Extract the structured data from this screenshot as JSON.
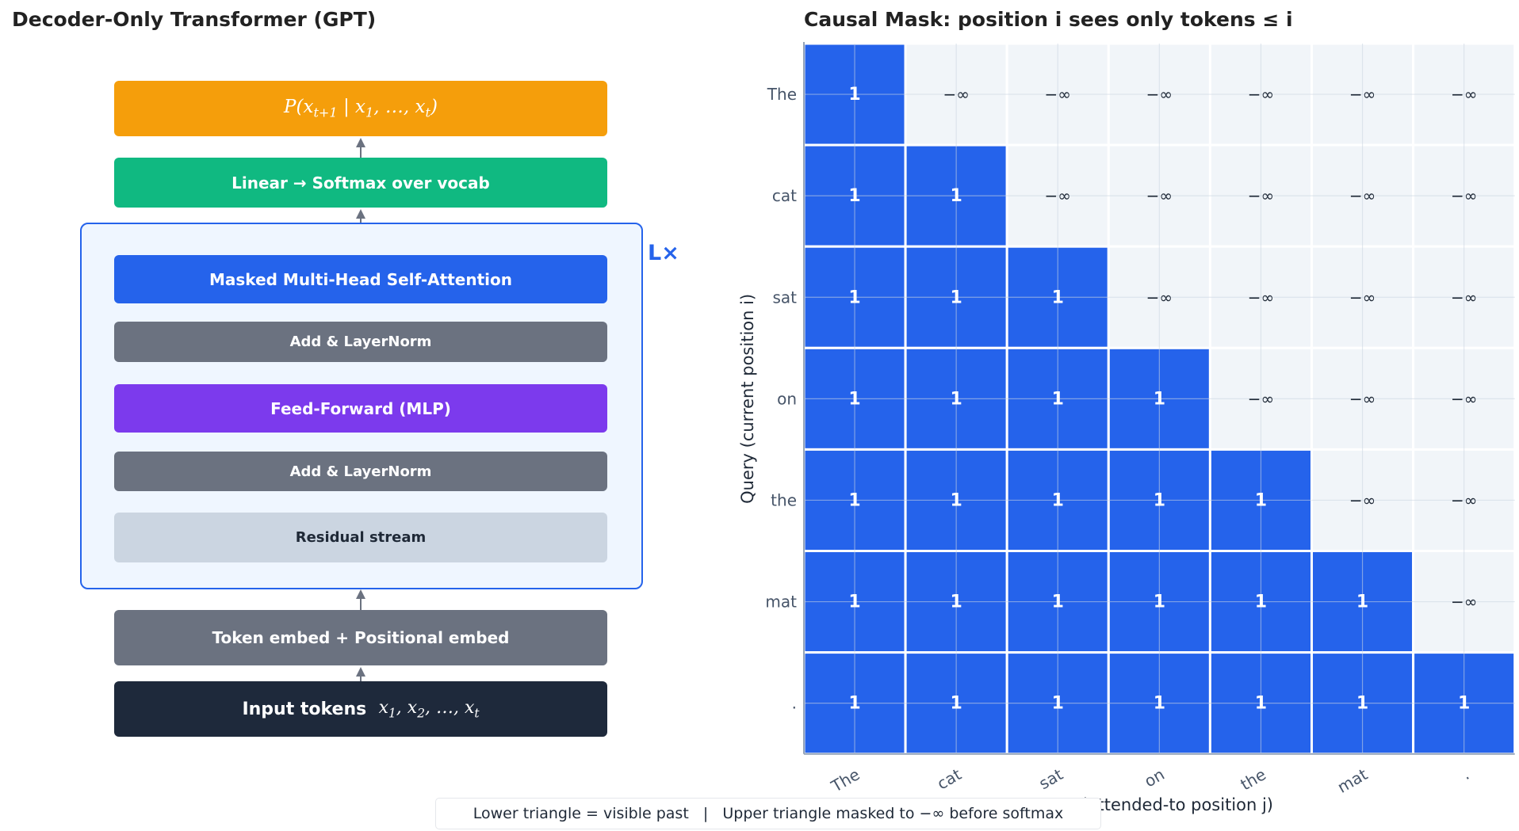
{
  "diagram": {
    "title": "Decoder-Only Transformer (GPT)",
    "output_box": {
      "parts": [
        "P(x",
        "t+1",
        " | x",
        "1",
        ", …, x",
        "t",
        ")"
      ],
      "color": "#f59e0b"
    },
    "head_box": {
      "label": "Linear  →  Softmax over vocab",
      "color": "#10b981"
    },
    "repeat_label": "L×",
    "block": [
      {
        "label": "Masked Multi-Head Self-Attention",
        "color": "#2563eb"
      },
      {
        "label": "Add & LayerNorm",
        "color": "#6b7280"
      },
      {
        "label": "Feed-Forward (MLP)",
        "color": "#7c3aed"
      },
      {
        "label": "Add & LayerNorm",
        "color": "#6b7280"
      },
      {
        "label": "Residual stream",
        "color": "#cbd5e1"
      }
    ],
    "embed_box": {
      "label": "Token embed  +  Positional embed",
      "color": "#6b7280"
    },
    "input_box": {
      "label": "Input tokens",
      "parts": [
        "x",
        "1",
        ", x",
        "2",
        ", …, x",
        "t"
      ],
      "color": "#1e293b"
    }
  },
  "chart_data": {
    "type": "heatmap",
    "title": "Causal Mask: position i sees only tokens ≤ i",
    "xlabel": "Key (attended-to position j)",
    "ylabel": "Query (current position i)",
    "x_tokens": [
      "The",
      "cat",
      "sat",
      "on",
      "the",
      "mat",
      "."
    ],
    "y_tokens": [
      "The",
      "cat",
      "sat",
      "on",
      "the",
      "mat",
      "."
    ],
    "visible_label": "1",
    "masked_label": "−∞",
    "visible_color": "#2563eb",
    "masked_color": "#f1f5f9",
    "rule": "lower triangle (j ≤ i) visible, upper triangle masked",
    "grid": true
  },
  "legend": {
    "text": "Lower triangle = visible past   |   Upper triangle masked to −∞ before softmax"
  }
}
